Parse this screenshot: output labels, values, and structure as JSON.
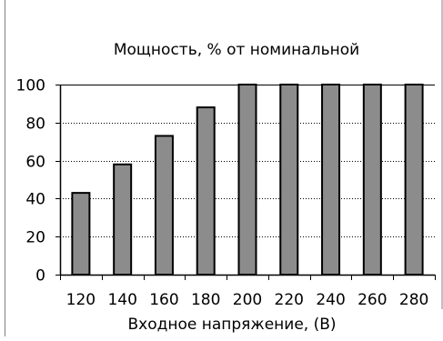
{
  "chart_data": {
    "type": "bar",
    "title": "Мощность, % от номинальной",
    "xlabel": "Входное напряжение, (В)",
    "ylabel": "",
    "categories": [
      "120",
      "140",
      "160",
      "180",
      "200",
      "220",
      "240",
      "260",
      "280"
    ],
    "values": [
      43,
      58,
      73,
      88,
      100,
      100,
      100,
      100,
      100
    ],
    "ylim": [
      0,
      100
    ],
    "yticks": [
      0,
      20,
      40,
      60,
      80,
      100
    ],
    "grid": true,
    "grid_style": "dotted",
    "legend": "none",
    "colors": {
      "bar_fill": "#8c8c8c",
      "bar_stroke": "#000000",
      "plot_background": "#ffffff",
      "grid": "#000000",
      "frame": "#808080"
    }
  }
}
